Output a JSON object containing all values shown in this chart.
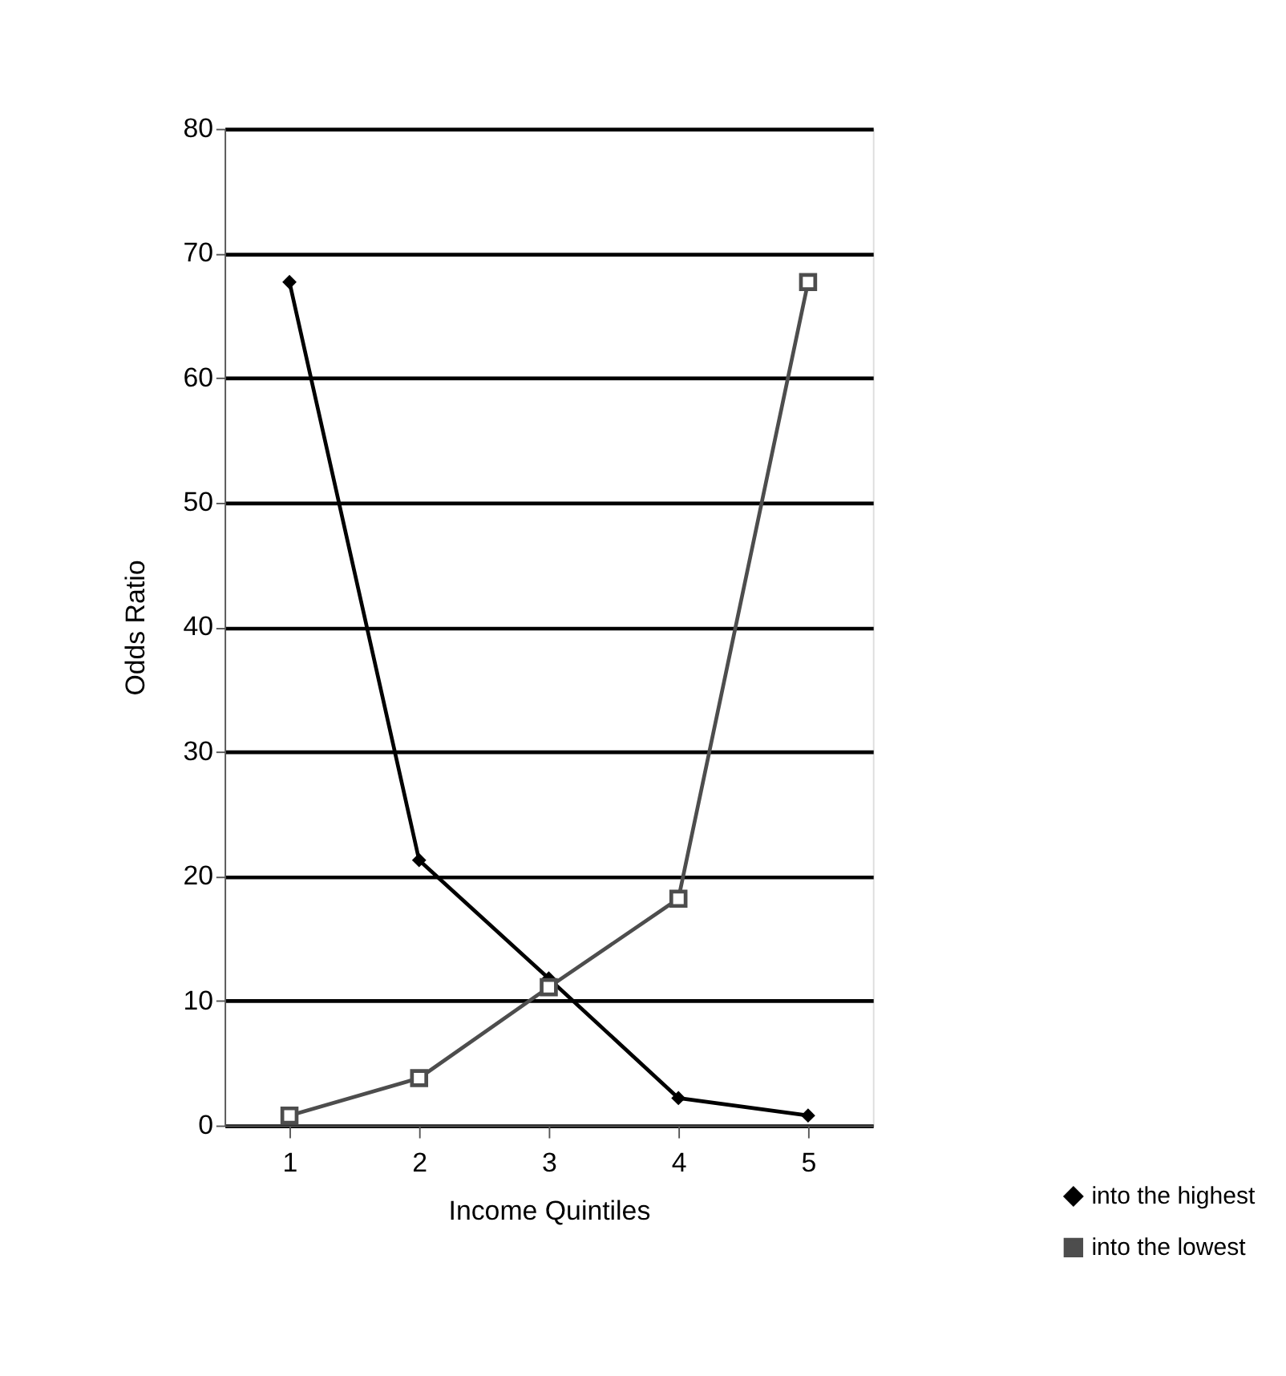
{
  "chart_data": {
    "type": "line",
    "xlabel": "Income Quintiles",
    "ylabel": "Odds Ratio",
    "categories": [
      "1",
      "2",
      "3",
      "4",
      "5"
    ],
    "series": [
      {
        "name": "into the highest",
        "color": "#000000",
        "marker": "diamond",
        "values": [
          67.7,
          21.3,
          11.8,
          2.2,
          0.8
        ]
      },
      {
        "name": "into the lowest",
        "color": "#4d4d4d",
        "marker": "square",
        "values": [
          0.8,
          3.8,
          11.1,
          18.2,
          67.7
        ]
      }
    ],
    "ylim": [
      0,
      80
    ],
    "yticks": [
      0,
      10,
      20,
      30,
      40,
      50,
      60,
      70,
      80
    ],
    "grid": "y",
    "legend": "bottom right",
    "line_style": "solid"
  }
}
